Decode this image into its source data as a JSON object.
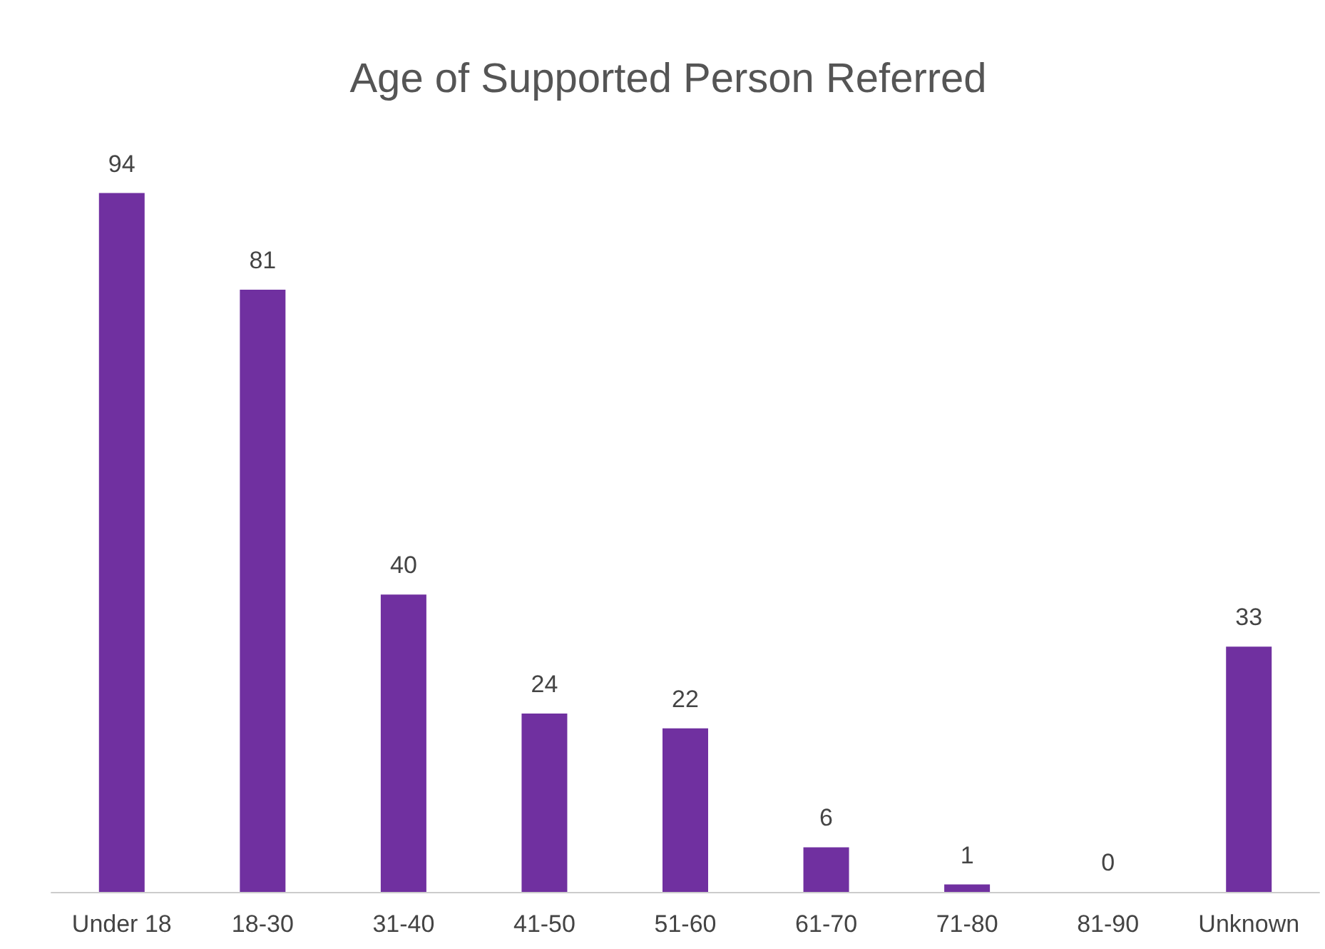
{
  "chart_data": {
    "type": "bar",
    "title": "Age of Supported Person Referred",
    "categories": [
      "Under 18",
      "18-30",
      "31-40",
      "41-50",
      "51-60",
      "61-70",
      "71-80",
      "81-90",
      "Unknown"
    ],
    "values": [
      94,
      81,
      40,
      24,
      22,
      6,
      1,
      0,
      33
    ],
    "color": "#7030a0",
    "data_labels": true
  }
}
